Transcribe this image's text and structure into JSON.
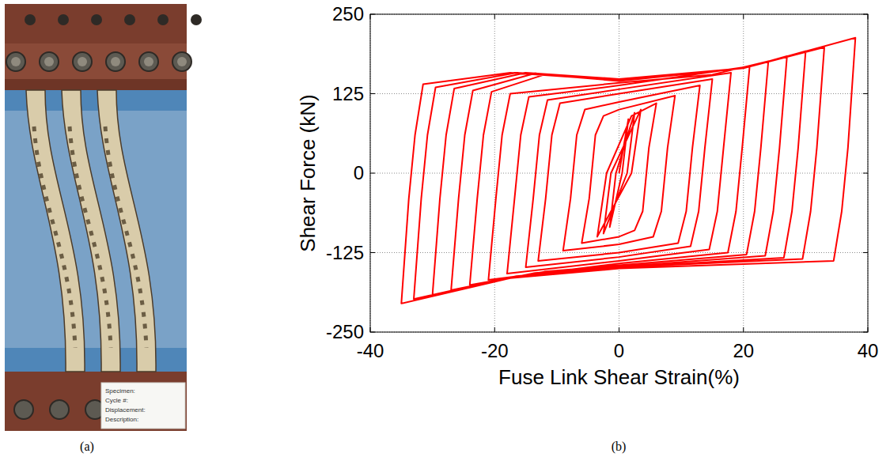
{
  "panel_labels": [
    "(a)",
    "(b)"
  ],
  "photo": {
    "card_lines": [
      "Specimen:",
      "Cycle #:",
      "Displacement:",
      "Description:"
    ]
  },
  "chart_data": {
    "type": "line",
    "x_label": "Fuse Link Shear Strain(%)",
    "y_label": "Shear Force (kN)",
    "xlim": [
      -40,
      40
    ],
    "xticks": [
      -40,
      -20,
      0,
      20,
      40
    ],
    "ylim": [
      -250,
      250
    ],
    "yticks": [
      -250,
      -125,
      0,
      125,
      250
    ],
    "grid": true,
    "x": [
      0,
      1.5,
      0.5,
      -1.5,
      -0.5,
      2.5,
      1.3,
      -2.5,
      -1.3,
      3.5,
      2,
      -3.5,
      -2,
      2,
      6,
      4.8,
      3.8,
      2.5,
      0,
      -6,
      -4.8,
      -3.8,
      -2.5,
      0,
      9,
      7.8,
      6.8,
      5.5,
      0,
      -9,
      -7.8,
      -6.8,
      -5.5,
      0,
      13,
      11.8,
      10.8,
      9.5,
      0,
      -13,
      -11.8,
      -10.8,
      -9.5,
      0,
      15,
      13.8,
      12.8,
      11.5,
      0,
      -15,
      -13.8,
      -12.8,
      -11.5,
      0,
      18,
      16.8,
      15.8,
      14.5,
      0,
      -18,
      -16.8,
      -15.8,
      -14.5,
      0,
      21,
      19.8,
      18.8,
      17.5,
      0,
      -21,
      -19.8,
      -18.8,
      -17.5,
      0,
      15,
      24,
      22.8,
      21.8,
      20.5,
      0,
      -12,
      -24,
      -22.8,
      -21.8,
      -20.5,
      -12,
      0,
      20,
      27,
      25.8,
      24.8,
      23.5,
      0,
      -13.5,
      -27,
      -25.8,
      -24.8,
      -23.5,
      -13.5,
      0,
      20,
      30,
      28.8,
      27.8,
      26.5,
      0,
      -15,
      -30,
      -28.8,
      -27.8,
      -26.5,
      -15,
      0,
      20,
      33,
      31.8,
      30.8,
      29.5,
      0,
      -16.5,
      -33,
      -31.8,
      -30.8,
      -29.5,
      -16.5,
      0,
      20,
      38,
      36.8,
      35.8,
      34.5,
      0,
      -17.5,
      -35,
      -33.8,
      -32.8,
      -31.5,
      -17.5,
      0
    ],
    "series": [
      {
        "color": "#ff0000",
        "line_style": "solid",
        "values": [
          0,
          85,
          0,
          -85,
          0,
          95,
          0,
          -95,
          0,
          100,
          0,
          -100,
          0,
          90,
          110,
          40,
          -60,
          -90,
          -100,
          -110,
          -40,
          60,
          90,
          100,
          122,
          40,
          -60,
          -100,
          -112,
          -122,
          -40,
          60,
          100,
          112,
          138,
          40,
          -60,
          -110,
          -125,
          -138,
          -40,
          60,
          110,
          125,
          148,
          40,
          -60,
          -115,
          -132,
          -148,
          -40,
          60,
          115,
          132,
          158,
          40,
          -60,
          -120,
          -138,
          -158,
          -40,
          60,
          120,
          138,
          168,
          40,
          -60,
          -125,
          -142,
          -168,
          -40,
          60,
          125,
          142,
          155,
          176,
          40,
          -60,
          -128,
          -145,
          -155,
          -176,
          -40,
          60,
          128,
          155,
          145,
          165,
          184,
          40,
          -60,
          -130,
          -147,
          -157,
          -184,
          -40,
          60,
          130,
          157,
          147,
          165,
          192,
          40,
          -60,
          -133,
          -148,
          -160,
          -192,
          -40,
          60,
          133,
          158,
          148,
          165,
          198,
          40,
          -60,
          -135,
          -148,
          -162,
          -198,
          -40,
          60,
          135,
          158,
          148,
          165,
          213,
          40,
          -60,
          -138,
          -150,
          -165,
          -205,
          -40,
          60,
          140,
          158,
          146
        ]
      }
    ]
  }
}
